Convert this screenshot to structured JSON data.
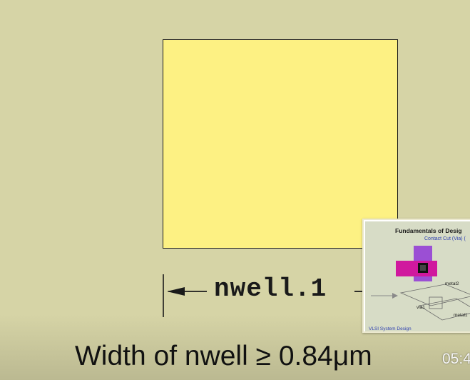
{
  "dimension": {
    "rule_label": "nwell.1"
  },
  "caption": {
    "text": "Width of nwell ≥ 0.84μm"
  },
  "video": {
    "timestamp": "05:4"
  },
  "thumbnail": {
    "title": "Fundamentals of Desig",
    "subtitle": "Contact Cut (Via) (",
    "label_metal2": "metal2",
    "label_via1": "via1",
    "label_metal1": "metal1",
    "footer": "VLSI System Design"
  },
  "colors": {
    "background": "#d6d4a6",
    "nwell_fill": "#fdf183",
    "outline": "#1a1a1a",
    "thumb_accent_purple": "#9b4fd4",
    "thumb_accent_magenta": "#d0189e"
  }
}
